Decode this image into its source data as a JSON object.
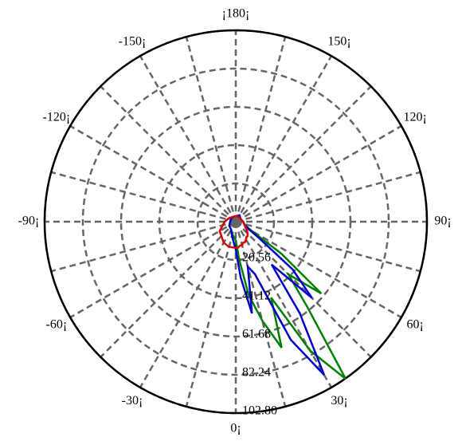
{
  "chart_data": {
    "type": "polar",
    "theta": [
      -180,
      -150,
      -120,
      -90,
      -60,
      -30,
      -15,
      0,
      5,
      10,
      15,
      20,
      25,
      30,
      35,
      40,
      45,
      50,
      55,
      60,
      70,
      90,
      120,
      150,
      180
    ],
    "series": [
      {
        "color": "#008000",
        "r": [
          3,
          3,
          3,
          3,
          4,
          5,
          7,
          10,
          20,
          40,
          55,
          72,
          45,
          80,
          103,
          60,
          40,
          60,
          30,
          10,
          5,
          4,
          3,
          3,
          3
        ]
      },
      {
        "color": "#0000cc",
        "r": [
          3,
          3,
          3,
          3,
          4,
          5,
          8,
          15,
          30,
          50,
          25,
          30,
          70,
          95,
          60,
          30,
          58,
          40,
          15,
          8,
          5,
          4,
          3,
          4,
          3
        ]
      },
      {
        "color": "#dd0000",
        "r": [
          3,
          3,
          4,
          6,
          10,
          13,
          14,
          14,
          14,
          13,
          13,
          12,
          12,
          11,
          10,
          10,
          9,
          8,
          7,
          6,
          5,
          4,
          3,
          3,
          3
        ]
      }
    ],
    "rlim": [
      0,
      102.8
    ],
    "rticks": [
      20.56,
      41.12,
      61.68,
      82.24,
      {
        "value": 102.8,
        "label": "102.80"
      }
    ],
    "thetaticks": [
      {
        "value": 0,
        "label": "0¡"
      },
      {
        "value": 30,
        "label": "30¡"
      },
      {
        "value": 60,
        "label": "60¡"
      },
      {
        "value": 90,
        "label": "90¡"
      },
      {
        "value": 120,
        "label": "120¡"
      },
      {
        "value": 150,
        "label": "150¡"
      },
      {
        "value": 180,
        "label": "¡180¡"
      },
      {
        "value": -150,
        "label": "-150¡"
      },
      {
        "value": -120,
        "label": "-120¡"
      },
      {
        "value": -90,
        "label": "-90¡"
      },
      {
        "value": -60,
        "label": "-60¡"
      },
      {
        "value": -30,
        "label": "-30¡"
      }
    ],
    "grid": true
  }
}
